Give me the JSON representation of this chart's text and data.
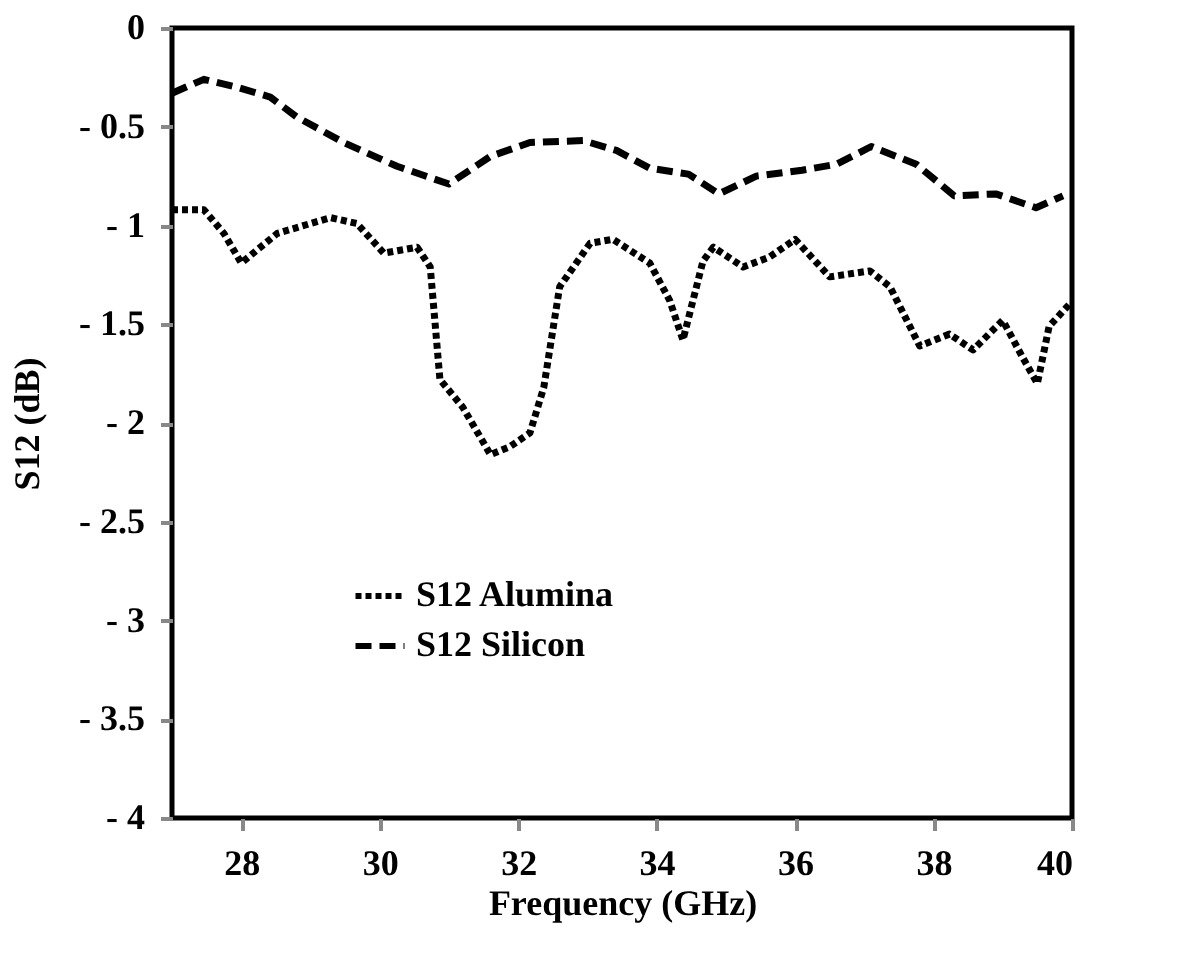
{
  "chart_data": {
    "type": "line",
    "xlabel": "Frequency (GHz)",
    "ylabel": "S12 (dB)",
    "xlim": [
      27,
      40
    ],
    "xticks": [
      28,
      30,
      32,
      34,
      36,
      38,
      40
    ],
    "ylim": [
      -4,
      0
    ],
    "yticks": [
      0,
      {
        "value": -0.5,
        "label": "- 0.5"
      },
      {
        "value": -1,
        "label": "- 1"
      },
      {
        "value": -1.5,
        "label": "- 1.5"
      },
      {
        "value": -2,
        "label": "- 2"
      },
      {
        "value": -2.5,
        "label": "- 2.5"
      },
      {
        "value": -3,
        "label": "- 3"
      },
      {
        "value": -3.5,
        "label": "- 3.5"
      },
      {
        "value": -4,
        "label": "- 4"
      }
    ],
    "grid": false,
    "legend": "left",
    "series": [
      {
        "name": "S12  Alumina",
        "color": "#000000",
        "line_style": "dotted",
        "x": [
          27,
          27.46,
          27.75,
          28.0,
          28.52,
          29.29,
          29.67,
          30.06,
          30.54,
          30.73,
          30.87,
          31.2,
          31.6,
          31.88,
          32.17,
          32.37,
          32.6,
          33.04,
          33.37,
          33.9,
          34.19,
          34.38,
          34.67,
          34.82,
          35.25,
          35.63,
          36.0,
          36.5,
          37.08,
          37.37,
          37.8,
          38.23,
          38.57,
          39.0,
          39.29,
          39.5,
          39.67,
          39.96
        ],
        "values": [
          -0.92,
          -0.92,
          -1.04,
          -1.19,
          -1.04,
          -0.96,
          -0.99,
          -1.14,
          -1.11,
          -1.21,
          -1.78,
          -1.92,
          -2.16,
          -2.12,
          -2.05,
          -1.82,
          -1.31,
          -1.09,
          -1.07,
          -1.19,
          -1.38,
          -1.58,
          -1.18,
          -1.11,
          -1.21,
          -1.16,
          -1.07,
          -1.26,
          -1.23,
          -1.31,
          -1.61,
          -1.55,
          -1.63,
          -1.48,
          -1.67,
          -1.8,
          -1.51,
          -1.4
        ]
      },
      {
        "name": "S12  Silicon",
        "color": "#000000",
        "line_style": "dashed",
        "x": [
          27,
          27.46,
          27.94,
          28.42,
          28.8,
          29.48,
          30.25,
          31.0,
          31.6,
          32.17,
          32.94,
          33.42,
          33.9,
          34.46,
          34.9,
          35.44,
          36.1,
          36.6,
          37.1,
          37.75,
          38.3,
          38.9,
          39.48,
          39.87
        ],
        "values": [
          -0.33,
          -0.26,
          -0.3,
          -0.35,
          -0.45,
          -0.58,
          -0.7,
          -0.79,
          -0.65,
          -0.58,
          -0.57,
          -0.62,
          -0.71,
          -0.74,
          -0.84,
          -0.75,
          -0.72,
          -0.69,
          -0.6,
          -0.69,
          -0.85,
          -0.84,
          -0.91,
          -0.85
        ]
      }
    ]
  }
}
